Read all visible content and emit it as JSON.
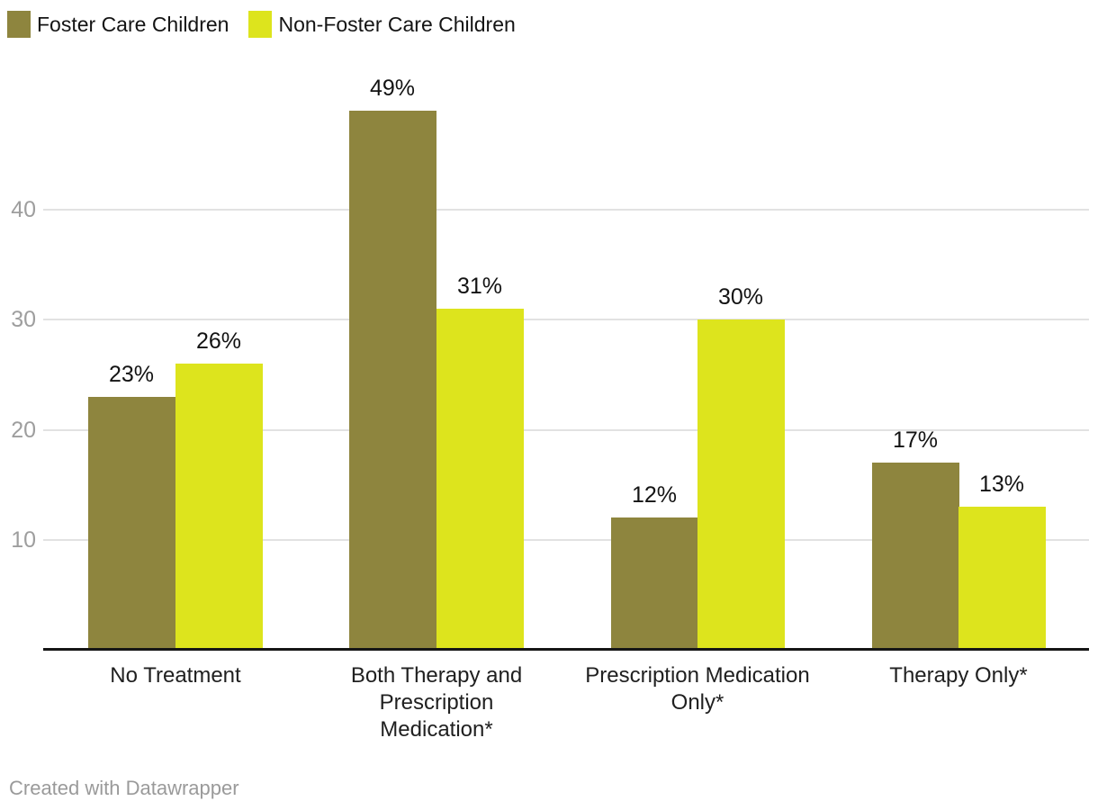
{
  "legend": {
    "items": [
      {
        "label": "Foster Care Children",
        "color": "#8e853e"
      },
      {
        "label": "Non-Foster Care Children",
        "color": "#dde41d"
      }
    ]
  },
  "footer": {
    "credit": "Created with Datawrapper"
  },
  "chart_data": {
    "type": "bar",
    "title": "",
    "xlabel": "",
    "ylabel": "",
    "categories": [
      "No Treatment",
      "Both Therapy and Prescription Medication*",
      "Prescription Medication Only*",
      "Therapy Only*"
    ],
    "category_lines": [
      [
        "No Treatment"
      ],
      [
        "Both Therapy and",
        "Prescription",
        "Medication*"
      ],
      [
        "Prescription Medication",
        "Only*"
      ],
      [
        "Therapy Only*"
      ]
    ],
    "series": [
      {
        "name": "Foster Care Children",
        "color": "#8e853e",
        "values": [
          23,
          49,
          12,
          17
        ]
      },
      {
        "name": "Non-Foster Care Children",
        "color": "#dde41d",
        "values": [
          26,
          31,
          30,
          13
        ]
      }
    ],
    "value_suffix": "%",
    "y_ticks": [
      10,
      20,
      30,
      40
    ],
    "ylim": [
      0,
      50
    ],
    "grid": true,
    "legend_position": "top-left",
    "gridline_color": "#e2e2e2",
    "baseline_color": "#161616",
    "tick_label_color": "#9e9e9e",
    "value_label_color": "#131313"
  }
}
